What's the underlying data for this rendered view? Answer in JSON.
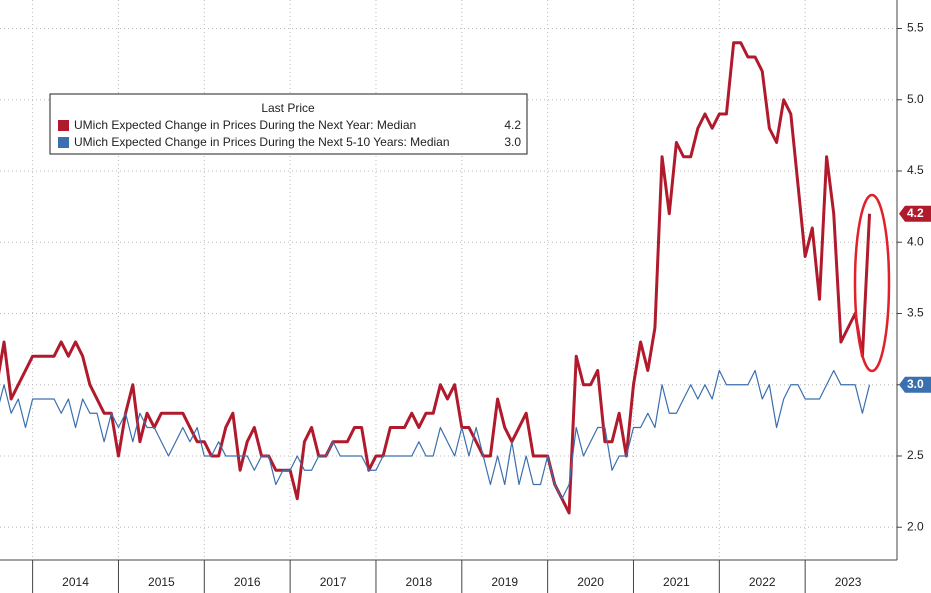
{
  "chart_data": {
    "type": "line",
    "legend_title": "Last Price",
    "x": [
      2013.583,
      2013.667,
      2013.75,
      2013.833,
      2013.917,
      2014,
      2014.083,
      2014.167,
      2014.25,
      2014.333,
      2014.417,
      2014.5,
      2014.583,
      2014.667,
      2014.75,
      2014.833,
      2014.917,
      2015,
      2015.083,
      2015.167,
      2015.25,
      2015.333,
      2015.417,
      2015.5,
      2015.583,
      2015.667,
      2015.75,
      2015.833,
      2015.917,
      2016,
      2016.083,
      2016.167,
      2016.25,
      2016.333,
      2016.417,
      2016.5,
      2016.583,
      2016.667,
      2016.75,
      2016.833,
      2016.917,
      2017,
      2017.083,
      2017.167,
      2017.25,
      2017.333,
      2017.417,
      2017.5,
      2017.583,
      2017.667,
      2017.75,
      2017.833,
      2017.917,
      2018,
      2018.083,
      2018.167,
      2018.25,
      2018.333,
      2018.417,
      2018.5,
      2018.583,
      2018.667,
      2018.75,
      2018.833,
      2018.917,
      2019,
      2019.083,
      2019.167,
      2019.25,
      2019.333,
      2019.417,
      2019.5,
      2019.583,
      2019.667,
      2019.75,
      2019.833,
      2019.917,
      2020,
      2020.083,
      2020.167,
      2020.25,
      2020.333,
      2020.417,
      2020.5,
      2020.583,
      2020.667,
      2020.75,
      2020.833,
      2020.917,
      2021,
      2021.083,
      2021.167,
      2021.25,
      2021.333,
      2021.417,
      2021.5,
      2021.583,
      2021.667,
      2021.75,
      2021.833,
      2021.917,
      2022,
      2022.083,
      2022.167,
      2022.25,
      2022.333,
      2022.417,
      2022.5,
      2022.583,
      2022.667,
      2022.75,
      2022.833,
      2022.917,
      2023,
      2023.083,
      2023.167,
      2023.25,
      2023.333,
      2023.417,
      2023.5,
      2023.583,
      2023.667,
      2023.75
    ],
    "series": [
      {
        "name": "UMich Expected Change in Prices During the Next Year: Median",
        "color": "#b01a2c",
        "last_price": "4.2",
        "values": [
          3.0,
          3.3,
          2.9,
          3.0,
          3.1,
          3.2,
          3.2,
          3.2,
          3.2,
          3.3,
          3.2,
          3.3,
          3.2,
          3.0,
          2.9,
          2.8,
          2.8,
          2.5,
          2.8,
          3.0,
          2.6,
          2.8,
          2.7,
          2.8,
          2.8,
          2.8,
          2.8,
          2.7,
          2.6,
          2.6,
          2.5,
          2.5,
          2.7,
          2.8,
          2.4,
          2.6,
          2.7,
          2.5,
          2.5,
          2.4,
          2.4,
          2.4,
          2.2,
          2.6,
          2.7,
          2.5,
          2.5,
          2.6,
          2.6,
          2.6,
          2.7,
          2.7,
          2.4,
          2.5,
          2.5,
          2.7,
          2.7,
          2.7,
          2.8,
          2.7,
          2.8,
          2.8,
          3.0,
          2.9,
          3.0,
          2.7,
          2.7,
          2.6,
          2.5,
          2.5,
          2.9,
          2.7,
          2.6,
          2.7,
          2.8,
          2.5,
          2.5,
          2.5,
          2.3,
          2.2,
          2.1,
          3.2,
          3.0,
          3.0,
          3.1,
          2.6,
          2.6,
          2.8,
          2.5,
          3.0,
          3.3,
          3.1,
          3.4,
          4.6,
          4.2,
          4.7,
          4.6,
          4.6,
          4.8,
          4.9,
          4.8,
          4.9,
          4.9,
          5.4,
          5.4,
          5.3,
          5.3,
          5.2,
          4.8,
          4.7,
          5.0,
          4.9,
          4.4,
          3.9,
          4.1,
          3.6,
          4.6,
          4.2,
          3.3,
          3.4,
          3.5,
          3.2,
          4.2
        ]
      },
      {
        "name": "UMich Expected Change in Prices During the Next 5-10 Years: Median",
        "color": "#3a6fb0",
        "last_price": "3.0",
        "values": [
          2.8,
          3.0,
          2.8,
          2.9,
          2.7,
          2.9,
          2.9,
          2.9,
          2.9,
          2.8,
          2.9,
          2.7,
          2.9,
          2.8,
          2.8,
          2.6,
          2.8,
          2.7,
          2.8,
          2.6,
          2.8,
          2.7,
          2.7,
          2.6,
          2.5,
          2.6,
          2.7,
          2.6,
          2.7,
          2.5,
          2.5,
          2.6,
          2.5,
          2.5,
          2.5,
          2.5,
          2.4,
          2.5,
          2.5,
          2.3,
          2.4,
          2.4,
          2.5,
          2.4,
          2.4,
          2.5,
          2.5,
          2.6,
          2.5,
          2.5,
          2.5,
          2.5,
          2.4,
          2.4,
          2.5,
          2.5,
          2.5,
          2.5,
          2.5,
          2.6,
          2.5,
          2.5,
          2.7,
          2.6,
          2.5,
          2.7,
          2.5,
          2.7,
          2.5,
          2.3,
          2.5,
          2.3,
          2.6,
          2.3,
          2.5,
          2.3,
          2.3,
          2.5,
          2.3,
          2.2,
          2.3,
          2.7,
          2.5,
          2.6,
          2.7,
          2.7,
          2.4,
          2.5,
          2.5,
          2.7,
          2.7,
          2.8,
          2.7,
          3.0,
          2.8,
          2.8,
          2.9,
          3.0,
          2.9,
          3.0,
          2.9,
          3.1,
          3.0,
          3.0,
          3.0,
          3.0,
          3.1,
          2.9,
          3.0,
          2.7,
          2.9,
          3.0,
          3.0,
          2.9,
          2.9,
          2.9,
          3.0,
          3.1,
          3.0,
          3.0,
          3.0,
          2.8,
          3.0
        ]
      }
    ],
    "xlim": [
      2013.62,
      2024.07
    ],
    "xticks": [
      {
        "value": 2014,
        "label": "2014"
      },
      {
        "value": 2015,
        "label": "2015"
      },
      {
        "value": 2016,
        "label": "2016"
      },
      {
        "value": 2017,
        "label": "2017"
      },
      {
        "value": 2018,
        "label": "2018"
      },
      {
        "value": 2019,
        "label": "2019"
      },
      {
        "value": 2020,
        "label": "2020"
      },
      {
        "value": 2021,
        "label": "2021"
      },
      {
        "value": 2022,
        "label": "2022"
      },
      {
        "value": 2023,
        "label": "2023"
      }
    ],
    "ylim": [
      1.77,
      5.7
    ],
    "yticks": [
      {
        "value": 2,
        "label": "2.0"
      },
      2.5,
      {
        "value": 3,
        "label": "3.0"
      },
      3.5,
      {
        "value": 4,
        "label": "4.0"
      },
      4.5,
      {
        "value": 5,
        "label": "5.0"
      },
      5.5
    ],
    "grid": true
  }
}
